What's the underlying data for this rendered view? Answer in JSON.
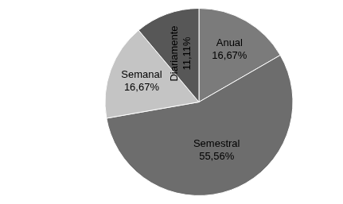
{
  "chart_data": {
    "type": "pie",
    "categories": [
      "Anual",
      "Semestral",
      "Semanal",
      "Diariamente"
    ],
    "values": [
      16.67,
      55.56,
      16.67,
      11.11
    ],
    "value_labels": [
      "16,67%",
      "55,56%",
      "16,67%",
      "11,11%"
    ],
    "colors": [
      "#7b7b7b",
      "#6d6d6d",
      "#c4c4c4",
      "#575757"
    ],
    "data_labels": true
  }
}
